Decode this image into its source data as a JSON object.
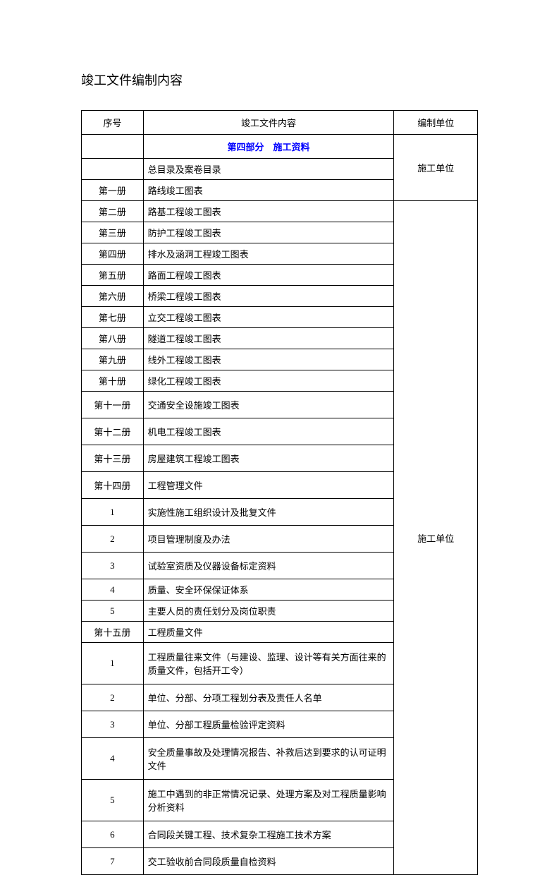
{
  "title": "竣工文件编制内容",
  "columns": {
    "seq": "序号",
    "content": "竣工文件内容",
    "unit": "编制单位"
  },
  "section_header": "第四部分　施工资料",
  "unit_label_1": "施工单位",
  "unit_label_2": "施工单位",
  "rows_group1": [
    {
      "seq": "",
      "content": "总目录及案卷目录"
    },
    {
      "seq": "第一册",
      "content": "路线竣工图表"
    }
  ],
  "rows_group2": [
    {
      "seq": "第二册",
      "content": "路基工程竣工图表"
    },
    {
      "seq": "第三册",
      "content": "防护工程竣工图表"
    },
    {
      "seq": "第四册",
      "content": "排水及涵洞工程竣工图表"
    },
    {
      "seq": "第五册",
      "content": "路面工程竣工图表"
    },
    {
      "seq": "第六册",
      "content": "桥梁工程竣工图表"
    },
    {
      "seq": "第七册",
      "content": "立交工程竣工图表"
    },
    {
      "seq": "第八册",
      "content": "隧道工程竣工图表"
    },
    {
      "seq": "第九册",
      "content": "线外工程竣工图表"
    },
    {
      "seq": "第十册",
      "content": "绿化工程竣工图表"
    },
    {
      "seq": "第十一册",
      "content": "交通安全设施竣工图表",
      "tall": true
    },
    {
      "seq": "第十二册",
      "content": "机电工程竣工图表",
      "tall": true
    },
    {
      "seq": "第十三册",
      "content": "房屋建筑工程竣工图表",
      "tall": true
    },
    {
      "seq": "第十四册",
      "content": "工程管理文件",
      "tall": true
    },
    {
      "seq": "1",
      "content": "实施性施工组织设计及批复文件",
      "tall": true
    },
    {
      "seq": "2",
      "content": "项目管理制度及办法",
      "tall": true
    },
    {
      "seq": "3",
      "content": "试验室资质及仪器设备标定资料",
      "tall": true
    },
    {
      "seq": "4",
      "content": "质量、安全环保保证体系"
    },
    {
      "seq": "5",
      "content": "主要人员的责任划分及岗位职责"
    },
    {
      "seq": "第十五册",
      "content": "工程质量文件"
    },
    {
      "seq": "1",
      "content": "工程质量往来文件（与建设、监理、设计等有关方面往来的质量文件，包括开工令）",
      "xtall": true
    },
    {
      "seq": "2",
      "content": "单位、分部、分项工程划分表及责任人名单",
      "tall": true
    },
    {
      "seq": "3",
      "content": "单位、分部工程质量检验评定资料",
      "tall": true
    },
    {
      "seq": "4",
      "content": "安全质量事故及处理情况报告、补救后达到要求的认可证明文件",
      "xtall": true
    },
    {
      "seq": "5",
      "content": "施工中遇到的非正常情况记录、处理方案及对工程质量影响分析资料",
      "xtall": true
    },
    {
      "seq": "6",
      "content": "合同段关键工程、技术复杂工程施工技术方案",
      "tall": true
    },
    {
      "seq": "7",
      "content": "交工验收前合同段质量自检资料",
      "tall": true
    }
  ]
}
